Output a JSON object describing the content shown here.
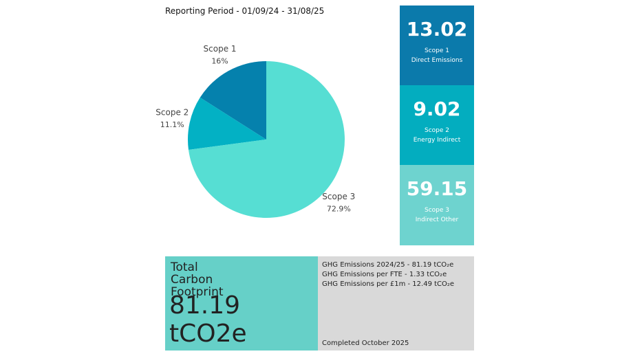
{
  "header": {
    "title": "Reporting Period - 01/09/24 - 31/08/25"
  },
  "chart_data": {
    "type": "pie",
    "categories": [
      "Scope 1",
      "Scope 2",
      "Scope 3"
    ],
    "values": [
      16,
      11.1,
      72.9
    ],
    "value_labels": [
      "16%",
      "11.1%",
      "72.9%"
    ],
    "colors": [
      "#0581ad",
      "#03b1c4",
      "#56ded3"
    ]
  },
  "cards": [
    {
      "value": 13.02,
      "label": "Scope 1",
      "sublabel": "Direct Emissions",
      "color": "#0b7aab"
    },
    {
      "value": 9.02,
      "label": "Scope 2",
      "sublabel": "Energy Indirect",
      "color": "#03adbf"
    },
    {
      "value": 59.15,
      "label": "Scope 3",
      "sublabel": "Indirect Other",
      "color": "#6ed3cf"
    }
  ],
  "total": {
    "lines": [
      "Total",
      "Carbon",
      "Footprint"
    ],
    "value": "81.19 tCO2e"
  },
  "notes": {
    "lines": [
      "GHG Emissions 2024/25 - 81.19 tCO₂e",
      "GHG Emissions per FTE - 1.33 tCO₂e",
      "GHG Emissions per £1m - 12.49 tCO₂e"
    ],
    "footer": "Completed October 2025"
  }
}
